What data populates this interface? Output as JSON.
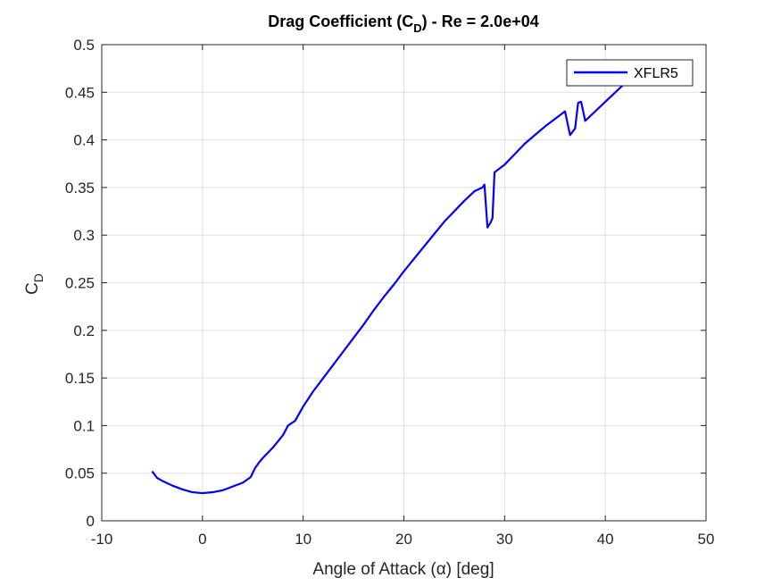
{
  "chart_data": {
    "type": "line",
    "title_main": "Drag Coefficient (C",
    "title_sub": "D",
    "title_tail": ") - Re = 2.0e+04",
    "xlabel": "Angle of Attack (α) [deg]",
    "ylabel_main": "C",
    "ylabel_sub": "D",
    "xlim": [
      -10,
      50
    ],
    "ylim": [
      0,
      0.5
    ],
    "xticks": [
      -10,
      0,
      10,
      20,
      30,
      40,
      50
    ],
    "yticks": [
      0,
      0.05,
      0.1,
      0.15,
      0.2,
      0.25,
      0.3,
      0.35,
      0.4,
      0.45,
      0.5
    ],
    "xtick_labels": [
      "-10",
      "0",
      "10",
      "20",
      "30",
      "40",
      "50"
    ],
    "ytick_labels": [
      "0",
      "0.05",
      "0.1",
      "0.15",
      "0.2",
      "0.25",
      "0.3",
      "0.35",
      "0.4",
      "0.45",
      "0.5"
    ],
    "grid": true,
    "legend_position": "top-right",
    "series": [
      {
        "name": "XFLR5",
        "color": "#0000ff",
        "x": [
          -5,
          -4.5,
          -4,
          -3,
          -2,
          -1,
          0,
          1,
          2,
          3,
          4,
          4.8,
          5.2,
          5.6,
          6,
          7,
          8,
          8.5,
          9.2,
          10,
          11,
          12,
          13,
          14,
          15,
          16,
          17,
          18,
          19,
          20,
          21,
          22,
          23,
          24,
          25,
          26,
          27,
          27.8,
          28,
          28.3,
          28.6,
          28.8,
          29,
          29.5,
          30,
          31,
          32,
          33,
          34,
          35,
          36,
          36.5,
          37,
          37.3,
          37.6,
          38,
          39,
          40,
          41,
          42
        ],
        "y": [
          0.052,
          0.045,
          0.042,
          0.037,
          0.033,
          0.03,
          0.029,
          0.03,
          0.032,
          0.036,
          0.04,
          0.046,
          0.055,
          0.061,
          0.066,
          0.077,
          0.09,
          0.1,
          0.105,
          0.12,
          0.136,
          0.15,
          0.164,
          0.178,
          0.192,
          0.206,
          0.221,
          0.235,
          0.248,
          0.262,
          0.275,
          0.288,
          0.301,
          0.314,
          0.325,
          0.336,
          0.346,
          0.35,
          0.353,
          0.308,
          0.313,
          0.318,
          0.366,
          0.37,
          0.374,
          0.385,
          0.396,
          0.405,
          0.414,
          0.422,
          0.43,
          0.405,
          0.412,
          0.439,
          0.44,
          0.42,
          0.43,
          0.44,
          0.45,
          0.46
        ]
      }
    ]
  }
}
